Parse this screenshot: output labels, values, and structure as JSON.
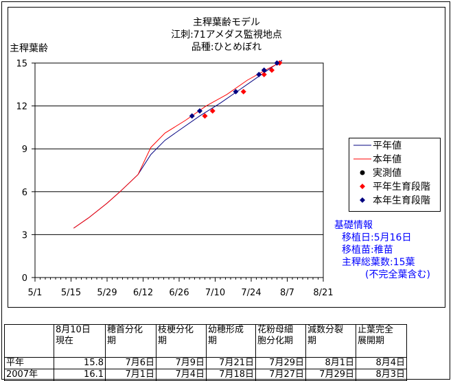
{
  "chart_data": {
    "type": "line",
    "title": [
      "主稈葉齢モデル",
      "江刺:71アメダス監視地点",
      "品種:ひとめぼれ"
    ],
    "ylabel": "主稈葉齢",
    "ylim": [
      0,
      15
    ],
    "yticks": [
      0,
      3,
      6,
      9,
      12,
      15
    ],
    "xlim_days_from_may1": [
      0,
      112
    ],
    "xticks": [
      {
        "label": "5/1",
        "day": 0
      },
      {
        "label": "5/15",
        "day": 14
      },
      {
        "label": "5/29",
        "day": 28
      },
      {
        "label": "6/12",
        "day": 42
      },
      {
        "label": "6/26",
        "day": 56
      },
      {
        "label": "7/10",
        "day": 70
      },
      {
        "label": "7/24",
        "day": 84
      },
      {
        "label": "8/7",
        "day": 98
      },
      {
        "label": "8/21",
        "day": 112
      }
    ],
    "grid": true,
    "legend_position": "right",
    "legend": [
      "平年値",
      "本年値",
      "実測値",
      "平年生育段階",
      "本年生育段階"
    ],
    "series": [
      {
        "name": "平年値",
        "color": "#000080",
        "x": [
          15,
          21,
          28,
          33,
          40,
          45,
          50.5,
          56,
          64,
          72,
          80,
          88,
          96
        ],
        "y": [
          3.45,
          4.2,
          5.2,
          6.0,
          7.2,
          8.6,
          9.6,
          10.3,
          11.3,
          12.2,
          13.2,
          14.2,
          15.2
        ]
      },
      {
        "name": "本年値",
        "color": "#ff0000",
        "x": [
          15,
          21,
          28,
          33,
          40,
          45,
          50.5,
          58.5,
          66.5,
          74.5,
          82.5,
          90.5,
          96
        ],
        "y": [
          3.45,
          4.2,
          5.2,
          6.0,
          7.2,
          9.1,
          10.1,
          11.0,
          12.0,
          12.8,
          13.8,
          14.6,
          15.1
        ]
      },
      {
        "name": "平年生育段階",
        "color": "#ff0000",
        "x": [
          66,
          69,
          81,
          89,
          92,
          95
        ],
        "y": [
          11.3,
          11.65,
          13.0,
          14.2,
          14.5,
          15.0
        ]
      },
      {
        "name": "本年生育段階",
        "color": "#000080",
        "x": [
          61,
          64,
          78,
          87,
          89,
          94
        ],
        "y": [
          11.3,
          11.65,
          13.0,
          14.2,
          14.5,
          15.0
        ]
      }
    ]
  },
  "info": {
    "heading": "基礎情報",
    "lines": [
      "移植日:5月16日",
      "移植苗:稚苗",
      "主稈総葉数:15葉",
      "(不完全葉含む)"
    ]
  },
  "table": {
    "headers": [
      "",
      "8月10日\n現在",
      "穂首分化\n期",
      "枝梗分化\n期",
      "幼穂形成\n期",
      "花粉母細\n胞分化期",
      "減数分裂\n期",
      "止葉完全\n展開期"
    ],
    "rows": [
      [
        "平年",
        "15.8",
        "7月6日",
        "7月9日",
        "7月21日",
        "7月29日",
        "8月1日",
        "8月4日"
      ],
      [
        "2007年",
        "16.1",
        "7月1日",
        "7月4日",
        "7月18日",
        "7月27日",
        "7月29日",
        "8月3日"
      ]
    ]
  }
}
